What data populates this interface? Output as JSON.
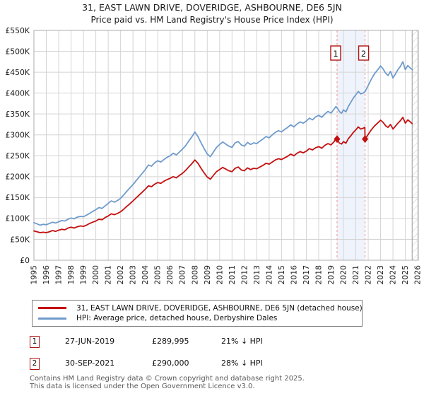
{
  "chart_data": {
    "type": "line",
    "title": "31, EAST LAWN DRIVE, DOVERIDGE, ASHBOURNE, DE6 5JN",
    "subtitle": "Price paid vs. HM Land Registry's House Price Index (HPI)",
    "x_axis": {
      "min": 1995,
      "max": 2026.05,
      "tick_labels": [
        "1995",
        "1996",
        "1997",
        "1998",
        "1999",
        "2000",
        "2001",
        "2002",
        "2003",
        "2004",
        "2005",
        "2006",
        "2007",
        "2008",
        "2009",
        "2010",
        "2011",
        "2012",
        "2013",
        "2014",
        "2015",
        "2016",
        "2017",
        "2018",
        "2019",
        "2020",
        "2021",
        "2022",
        "2023",
        "2024",
        "2025",
        "2026"
      ]
    },
    "y_axis": {
      "min": 0,
      "max_k": 550,
      "tick_step_k": 50,
      "tick_labels": [
        "£0",
        "£50K",
        "£100K",
        "£150K",
        "£200K",
        "£250K",
        "£300K",
        "£350K",
        "£400K",
        "£450K",
        "£500K",
        "£550K"
      ]
    },
    "grid_color": "#d4d4d4",
    "border_color": "#adadad",
    "shaded_band": {
      "from": 2019.485,
      "to": 2021.745,
      "color": "#eff3fb"
    },
    "no_data_region": {
      "from": 2025.55,
      "hatch_color": "#c9c9c9",
      "edge_color": "#9a9a9a"
    },
    "sale_markers": [
      {
        "label": "1",
        "x": 2019.485,
        "value_k": 290.0,
        "line_color": "#f4a0a0",
        "box_color": "#b01414"
      },
      {
        "label": "2",
        "x": 2021.745,
        "value_k": 290.0,
        "line_color": "#f4a0a0",
        "box_color": "#b01414"
      }
    ],
    "series": [
      {
        "name": "price-paid-indexed",
        "label": "31, EAST LAWN DRIVE, DOVERIDGE, ASHBOURNE, DE6 5JN (detached house)",
        "color": "#c40f0f",
        "points": [
          [
            1995,
            70
          ],
          [
            1995.25,
            68
          ],
          [
            1995.5,
            66
          ],
          [
            1995.75,
            67
          ],
          [
            1996,
            66
          ],
          [
            1996.25,
            68
          ],
          [
            1996.5,
            71
          ],
          [
            1996.75,
            69
          ],
          [
            1997,
            72
          ],
          [
            1997.25,
            74
          ],
          [
            1997.5,
            73
          ],
          [
            1997.75,
            77
          ],
          [
            1998,
            79
          ],
          [
            1998.25,
            77
          ],
          [
            1998.5,
            80
          ],
          [
            1998.75,
            82
          ],
          [
            1999,
            81
          ],
          [
            1999.25,
            84
          ],
          [
            1999.5,
            88
          ],
          [
            1999.75,
            91
          ],
          [
            2000,
            94
          ],
          [
            2000.25,
            98
          ],
          [
            2000.5,
            97
          ],
          [
            2000.75,
            102
          ],
          [
            2001,
            106
          ],
          [
            2001.25,
            111
          ],
          [
            2001.5,
            109
          ],
          [
            2001.75,
            112
          ],
          [
            2002,
            116
          ],
          [
            2002.25,
            122
          ],
          [
            2002.5,
            129
          ],
          [
            2002.75,
            135
          ],
          [
            2003,
            142
          ],
          [
            2003.25,
            149
          ],
          [
            2003.5,
            156
          ],
          [
            2003.75,
            163
          ],
          [
            2004,
            170
          ],
          [
            2004.25,
            178
          ],
          [
            2004.5,
            176
          ],
          [
            2004.75,
            182
          ],
          [
            2005,
            186
          ],
          [
            2005.25,
            184
          ],
          [
            2005.5,
            189
          ],
          [
            2005.75,
            193
          ],
          [
            2006,
            196
          ],
          [
            2006.25,
            200
          ],
          [
            2006.5,
            197
          ],
          [
            2006.75,
            203
          ],
          [
            2007,
            208
          ],
          [
            2007.25,
            215
          ],
          [
            2007.5,
            223
          ],
          [
            2007.75,
            231
          ],
          [
            2008,
            240
          ],
          [
            2008.25,
            232
          ],
          [
            2008.5,
            220
          ],
          [
            2008.75,
            209
          ],
          [
            2009,
            199
          ],
          [
            2009.25,
            194
          ],
          [
            2009.5,
            203
          ],
          [
            2009.75,
            212
          ],
          [
            2010,
            217
          ],
          [
            2010.25,
            222
          ],
          [
            2010.5,
            218
          ],
          [
            2010.75,
            214
          ],
          [
            2011,
            212
          ],
          [
            2011.25,
            220
          ],
          [
            2011.5,
            223
          ],
          [
            2011.75,
            216
          ],
          [
            2012,
            214
          ],
          [
            2012.25,
            221
          ],
          [
            2012.5,
            217
          ],
          [
            2012.75,
            220
          ],
          [
            2013,
            219
          ],
          [
            2013.25,
            223
          ],
          [
            2013.5,
            227
          ],
          [
            2013.75,
            232
          ],
          [
            2014,
            230
          ],
          [
            2014.25,
            235
          ],
          [
            2014.5,
            240
          ],
          [
            2014.75,
            243
          ],
          [
            2015,
            241
          ],
          [
            2015.25,
            245
          ],
          [
            2015.5,
            249
          ],
          [
            2015.75,
            254
          ],
          [
            2016,
            250
          ],
          [
            2016.25,
            256
          ],
          [
            2016.5,
            260
          ],
          [
            2016.75,
            257
          ],
          [
            2017,
            261
          ],
          [
            2017.25,
            267
          ],
          [
            2017.5,
            264
          ],
          [
            2017.75,
            269
          ],
          [
            2018,
            272
          ],
          [
            2018.25,
            268
          ],
          [
            2018.5,
            275
          ],
          [
            2018.75,
            279
          ],
          [
            2019,
            276
          ],
          [
            2019.25,
            284
          ],
          [
            2019.4,
            293
          ],
          [
            2019.49,
            290
          ],
          [
            2019.65,
            281
          ],
          [
            2019.85,
            278
          ],
          [
            2020,
            284
          ],
          [
            2020.2,
            280
          ],
          [
            2020.4,
            291
          ],
          [
            2020.6,
            298
          ],
          [
            2020.8,
            306
          ],
          [
            2021,
            312
          ],
          [
            2021.2,
            319
          ],
          [
            2021.4,
            314
          ],
          [
            2021.6,
            316
          ],
          [
            2021.73,
            318
          ],
          [
            2021.745,
            290
          ],
          [
            2022,
            301
          ],
          [
            2022.25,
            312
          ],
          [
            2022.5,
            321
          ],
          [
            2022.75,
            328
          ],
          [
            2023,
            335
          ],
          [
            2023.2,
            330
          ],
          [
            2023.4,
            322
          ],
          [
            2023.6,
            318
          ],
          [
            2023.8,
            325
          ],
          [
            2024,
            314
          ],
          [
            2024.2,
            321
          ],
          [
            2024.4,
            328
          ],
          [
            2024.6,
            334
          ],
          [
            2024.8,
            342
          ],
          [
            2025,
            328
          ],
          [
            2025.2,
            336
          ],
          [
            2025.4,
            331
          ],
          [
            2025.55,
            327
          ]
        ]
      },
      {
        "name": "hpi",
        "label": "HPI: Average price, detached house, Derbyshire Dales",
        "color": "#6f9bcc",
        "points": [
          [
            1995,
            90
          ],
          [
            1995.25,
            87
          ],
          [
            1995.5,
            84
          ],
          [
            1995.75,
            86
          ],
          [
            1996,
            85
          ],
          [
            1996.25,
            88
          ],
          [
            1996.5,
            91
          ],
          [
            1996.75,
            89
          ],
          [
            1997,
            92
          ],
          [
            1997.25,
            95
          ],
          [
            1997.5,
            94
          ],
          [
            1997.75,
            98
          ],
          [
            1998,
            101
          ],
          [
            1998.25,
            99
          ],
          [
            1998.5,
            103
          ],
          [
            1998.75,
            105
          ],
          [
            1999,
            104
          ],
          [
            1999.25,
            108
          ],
          [
            1999.5,
            112
          ],
          [
            1999.75,
            117
          ],
          [
            2000,
            121
          ],
          [
            2000.25,
            126
          ],
          [
            2000.5,
            124
          ],
          [
            2000.75,
            130
          ],
          [
            2001,
            136
          ],
          [
            2001.25,
            142
          ],
          [
            2001.5,
            139
          ],
          [
            2001.75,
            143
          ],
          [
            2002,
            148
          ],
          [
            2002.25,
            156
          ],
          [
            2002.5,
            165
          ],
          [
            2002.75,
            173
          ],
          [
            2003,
            181
          ],
          [
            2003.25,
            190
          ],
          [
            2003.5,
            199
          ],
          [
            2003.75,
            208
          ],
          [
            2004,
            217
          ],
          [
            2004.25,
            228
          ],
          [
            2004.5,
            225
          ],
          [
            2004.75,
            233
          ],
          [
            2005,
            238
          ],
          [
            2005.25,
            235
          ],
          [
            2005.5,
            241
          ],
          [
            2005.75,
            246
          ],
          [
            2006,
            250
          ],
          [
            2006.25,
            256
          ],
          [
            2006.5,
            252
          ],
          [
            2006.75,
            259
          ],
          [
            2007,
            266
          ],
          [
            2007.25,
            274
          ],
          [
            2007.5,
            285
          ],
          [
            2007.75,
            295
          ],
          [
            2008,
            307
          ],
          [
            2008.25,
            296
          ],
          [
            2008.5,
            281
          ],
          [
            2008.75,
            267
          ],
          [
            2009,
            254
          ],
          [
            2009.25,
            248
          ],
          [
            2009.5,
            259
          ],
          [
            2009.75,
            270
          ],
          [
            2010,
            277
          ],
          [
            2010.25,
            283
          ],
          [
            2010.5,
            278
          ],
          [
            2010.75,
            273
          ],
          [
            2011,
            270
          ],
          [
            2011.25,
            281
          ],
          [
            2011.5,
            284
          ],
          [
            2011.75,
            276
          ],
          [
            2012,
            273
          ],
          [
            2012.25,
            282
          ],
          [
            2012.5,
            277
          ],
          [
            2012.75,
            281
          ],
          [
            2013,
            279
          ],
          [
            2013.25,
            285
          ],
          [
            2013.5,
            290
          ],
          [
            2013.75,
            296
          ],
          [
            2014,
            293
          ],
          [
            2014.25,
            300
          ],
          [
            2014.5,
            306
          ],
          [
            2014.75,
            310
          ],
          [
            2015,
            307
          ],
          [
            2015.25,
            313
          ],
          [
            2015.5,
            318
          ],
          [
            2015.75,
            324
          ],
          [
            2016,
            319
          ],
          [
            2016.25,
            326
          ],
          [
            2016.5,
            331
          ],
          [
            2016.75,
            328
          ],
          [
            2017,
            333
          ],
          [
            2017.25,
            340
          ],
          [
            2017.5,
            336
          ],
          [
            2017.75,
            343
          ],
          [
            2018,
            347
          ],
          [
            2018.25,
            342
          ],
          [
            2018.5,
            350
          ],
          [
            2018.75,
            356
          ],
          [
            2019,
            352
          ],
          [
            2019.25,
            362
          ],
          [
            2019.4,
            368
          ],
          [
            2019.55,
            362
          ],
          [
            2019.7,
            355
          ],
          [
            2019.85,
            352
          ],
          [
            2020,
            360
          ],
          [
            2020.2,
            355
          ],
          [
            2020.4,
            368
          ],
          [
            2020.6,
            378
          ],
          [
            2020.8,
            388
          ],
          [
            2021,
            396
          ],
          [
            2021.2,
            404
          ],
          [
            2021.4,
            398
          ],
          [
            2021.6,
            400
          ],
          [
            2021.75,
            404
          ],
          [
            2022,
            418
          ],
          [
            2022.25,
            433
          ],
          [
            2022.5,
            446
          ],
          [
            2022.75,
            455
          ],
          [
            2023,
            465
          ],
          [
            2023.2,
            458
          ],
          [
            2023.4,
            448
          ],
          [
            2023.6,
            442
          ],
          [
            2023.8,
            452
          ],
          [
            2024,
            436
          ],
          [
            2024.2,
            446
          ],
          [
            2024.4,
            456
          ],
          [
            2024.6,
            464
          ],
          [
            2024.8,
            475
          ],
          [
            2025,
            456
          ],
          [
            2025.2,
            466
          ],
          [
            2025.4,
            460
          ],
          [
            2025.55,
            456
          ]
        ]
      }
    ]
  },
  "sales": [
    {
      "num": "1",
      "date": "27-JUN-2019",
      "price": "£289,995",
      "vs_hpi": "21% ↓ HPI"
    },
    {
      "num": "2",
      "date": "30-SEP-2021",
      "price": "£290,000",
      "vs_hpi": "28% ↓ HPI"
    }
  ],
  "footer": {
    "line1": "Contains HM Land Registry data © Crown copyright and database right 2025.",
    "line2": "This data is licensed under the Open Government Licence v3.0."
  }
}
